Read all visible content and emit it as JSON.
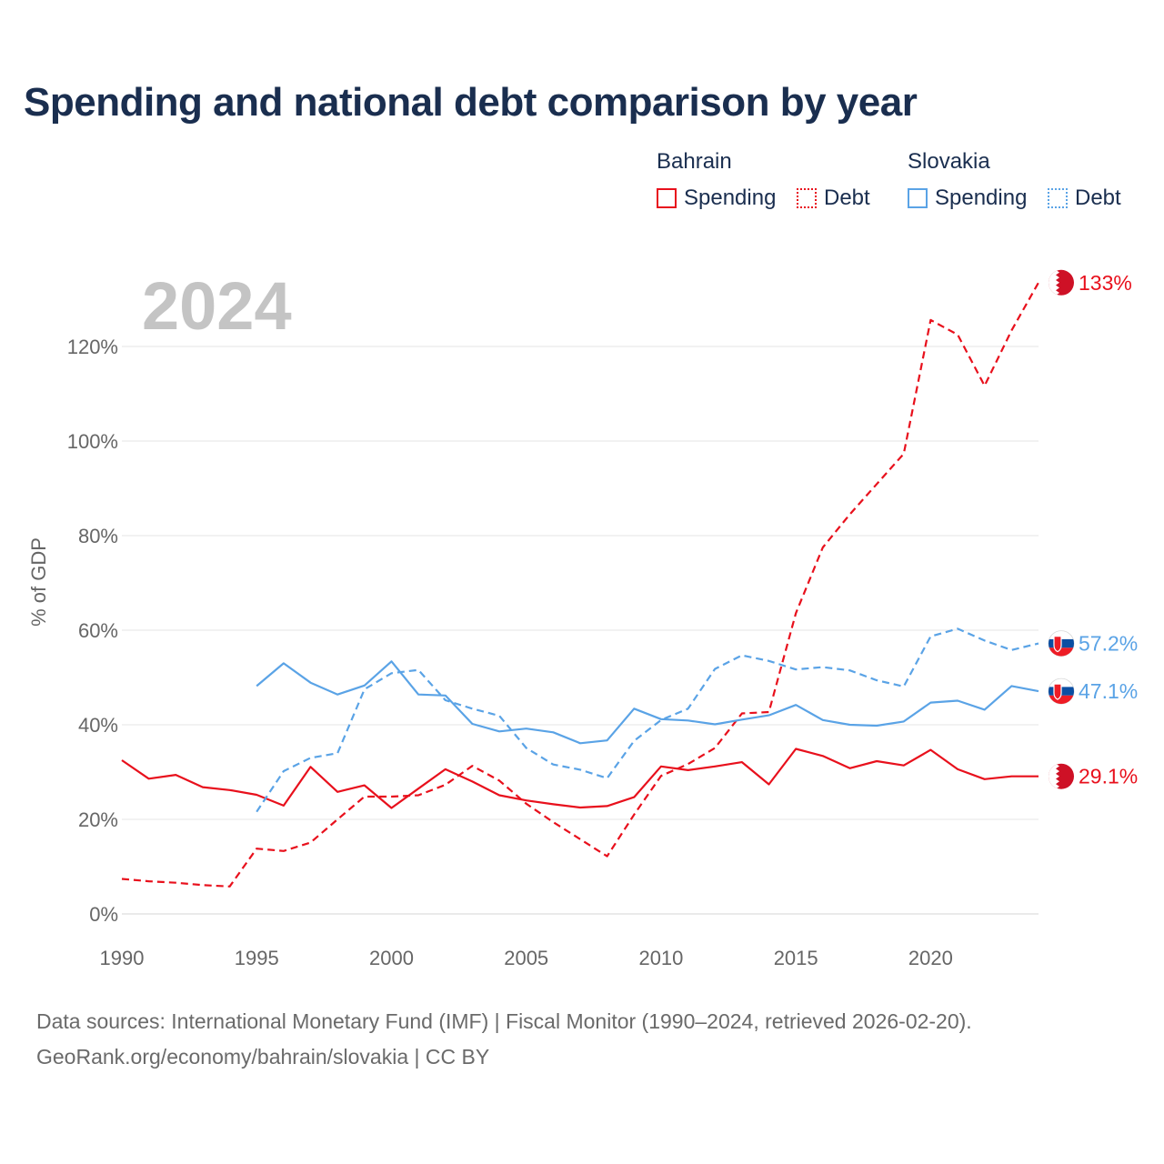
{
  "title": "Spending and national debt comparison by year",
  "legend": {
    "groups": [
      {
        "name": "Bahrain",
        "color": "#e8101c",
        "items": [
          {
            "label": "Spending",
            "style": "solid"
          },
          {
            "label": "Debt",
            "style": "dotted"
          }
        ]
      },
      {
        "name": "Slovakia",
        "color": "#5aa3e6",
        "items": [
          {
            "label": "Spending",
            "style": "solid"
          },
          {
            "label": "Debt",
            "style": "dotted"
          }
        ]
      }
    ]
  },
  "footer": {
    "line1": "Data sources: International Monetary Fund (IMF) | Fiscal Monitor (1990–2024, retrieved 2026-02-20).",
    "line2": "GeoRank.org/economy/bahrain/slovakia | CC BY"
  },
  "chart_data": {
    "type": "line",
    "year_label": "2024",
    "ylabel": "% of GDP",
    "xlim": [
      1990,
      2024
    ],
    "ylim": [
      0,
      135
    ],
    "x_ticks": [
      1990,
      1995,
      2000,
      2005,
      2010,
      2015,
      2020
    ],
    "y_ticks": [
      0,
      20,
      40,
      60,
      80,
      100,
      120
    ],
    "y_tick_labels": [
      "0%",
      "20%",
      "40%",
      "60%",
      "80%",
      "100%",
      "120%"
    ],
    "grid": true,
    "series": [
      {
        "name": "Bahrain Spending",
        "color": "#e8101c",
        "dash": "solid",
        "end_label": "29.1%",
        "flag": "bahrain",
        "x": [
          1990,
          1991,
          1992,
          1993,
          1994,
          1995,
          1996,
          1997,
          1998,
          1999,
          2000,
          2001,
          2002,
          2003,
          2004,
          2005,
          2006,
          2007,
          2008,
          2009,
          2010,
          2011,
          2012,
          2013,
          2014,
          2015,
          2016,
          2017,
          2018,
          2019,
          2020,
          2021,
          2022,
          2023,
          2024
        ],
        "values": [
          32.5,
          28.6,
          29.4,
          26.8,
          26.2,
          25.2,
          22.9,
          31.1,
          25.8,
          27.2,
          22.4,
          26.5,
          30.6,
          28.0,
          25.1,
          24.0,
          23.2,
          22.5,
          22.8,
          24.7,
          31.2,
          30.4,
          31.2,
          32.1,
          27.4,
          34.9,
          33.4,
          30.8,
          32.3,
          31.4,
          34.7,
          30.6,
          28.5,
          29.1,
          29.1
        ]
      },
      {
        "name": "Bahrain Debt",
        "color": "#e8101c",
        "dash": "dashed",
        "end_label": "133%",
        "flag": "bahrain",
        "x": [
          1990,
          1991,
          1992,
          1993,
          1994,
          1995,
          1996,
          1997,
          1998,
          1999,
          2000,
          2001,
          2002,
          2003,
          2004,
          2005,
          2006,
          2007,
          2008,
          2009,
          2010,
          2011,
          2012,
          2013,
          2014,
          2015,
          2016,
          2017,
          2018,
          2019,
          2020,
          2021,
          2022,
          2023,
          2024
        ],
        "values": [
          7.4,
          6.9,
          6.6,
          6.1,
          5.8,
          13.8,
          13.3,
          15.1,
          20.0,
          24.8,
          24.8,
          25.1,
          27.3,
          31.3,
          28.2,
          23.3,
          19.4,
          15.8,
          12.2,
          21.0,
          29.2,
          31.7,
          35.1,
          42.4,
          42.7,
          63.6,
          77.5,
          84.5,
          90.9,
          97.3,
          125.6,
          122.5,
          111.7,
          123.4,
          133.5
        ]
      },
      {
        "name": "Slovakia Spending",
        "color": "#5aa3e6",
        "dash": "solid",
        "end_label": "47.1%",
        "flag": "slovakia",
        "x": [
          1995,
          1996,
          1997,
          1998,
          1999,
          2000,
          2001,
          2002,
          2003,
          2004,
          2005,
          2006,
          2007,
          2008,
          2009,
          2010,
          2011,
          2012,
          2013,
          2014,
          2015,
          2016,
          2017,
          2018,
          2019,
          2020,
          2021,
          2022,
          2023,
          2024
        ],
        "values": [
          48.2,
          53.0,
          48.9,
          46.4,
          48.3,
          53.4,
          46.4,
          46.2,
          40.2,
          38.6,
          39.2,
          38.4,
          36.1,
          36.7,
          43.4,
          41.2,
          40.9,
          40.1,
          41.1,
          42.0,
          44.2,
          41.0,
          40.0,
          39.8,
          40.7,
          44.7,
          45.1,
          43.2,
          48.2,
          47.1
        ]
      },
      {
        "name": "Slovakia Debt",
        "color": "#5aa3e6",
        "dash": "dashed",
        "end_label": "57.2%",
        "flag": "slovakia",
        "x": [
          1995,
          1996,
          1997,
          1998,
          1999,
          2000,
          2001,
          2002,
          2003,
          2004,
          2005,
          2006,
          2007,
          2008,
          2009,
          2010,
          2011,
          2012,
          2013,
          2014,
          2015,
          2016,
          2017,
          2018,
          2019,
          2020,
          2021,
          2022,
          2023,
          2024
        ],
        "values": [
          21.6,
          30.2,
          33.0,
          34.0,
          47.5,
          50.9,
          51.6,
          45.2,
          43.4,
          41.9,
          35.1,
          31.6,
          30.5,
          28.7,
          36.6,
          41.0,
          43.4,
          51.8,
          54.7,
          53.5,
          51.7,
          52.2,
          51.5,
          49.4,
          48.1,
          58.7,
          60.3,
          57.8,
          55.8,
          57.2
        ]
      }
    ]
  }
}
